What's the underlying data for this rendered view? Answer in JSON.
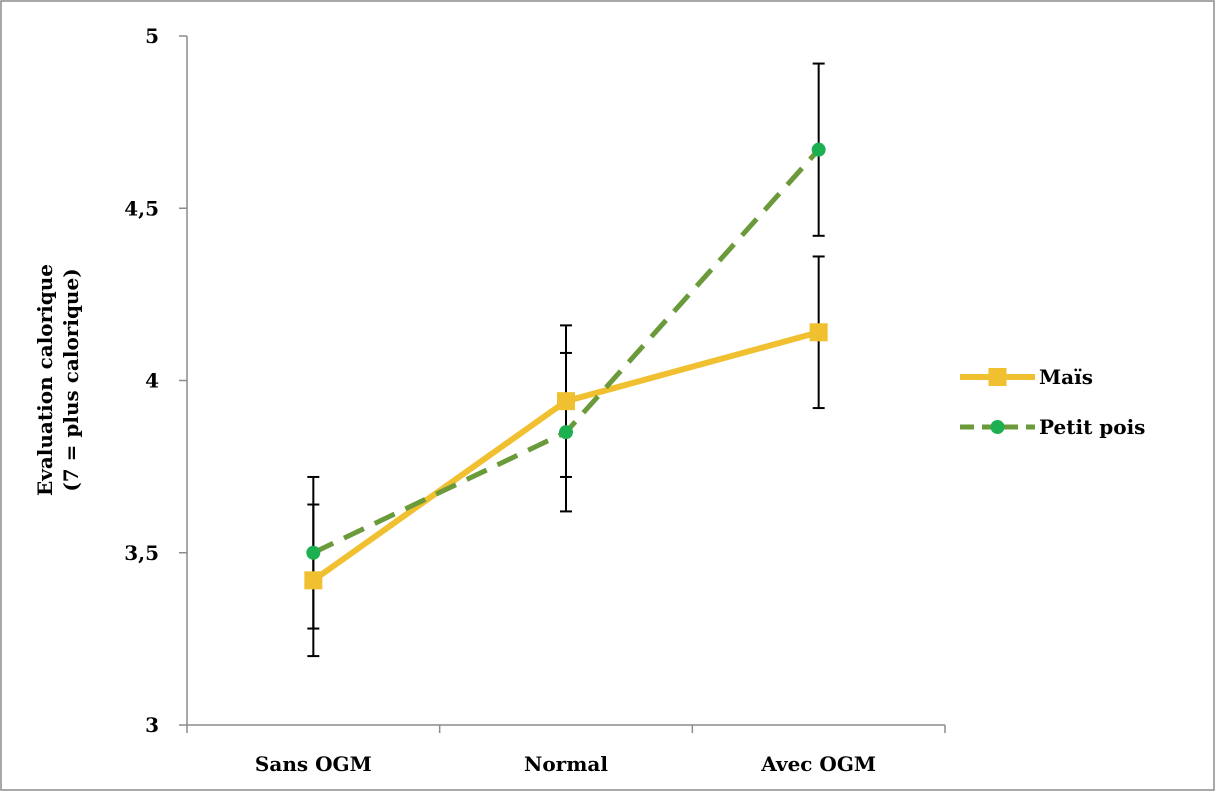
{
  "chart_data": {
    "type": "line",
    "title": "",
    "xlabel": "",
    "ylabel_lines": [
      "Evaluation calorique",
      "(7 = plus calorique)"
    ],
    "categories": [
      "Sans OGM",
      "Normal",
      "Avec OGM"
    ],
    "ylim": [
      3,
      5
    ],
    "yticks": [
      3,
      3.5,
      4,
      4.5,
      5
    ],
    "ytick_labels": [
      "3",
      "3,5",
      "4",
      "4,5",
      "5"
    ],
    "grid": false,
    "legend_position": "right",
    "series": [
      {
        "name": "Maïs",
        "values": [
          3.42,
          3.94,
          4.14
        ],
        "error_low": [
          3.2,
          3.72,
          3.92
        ],
        "error_high": [
          3.64,
          4.16,
          4.36
        ],
        "color": "#F0C030",
        "marker": "square",
        "line_style": "solid"
      },
      {
        "name": "Petit pois",
        "values": [
          3.5,
          3.85,
          4.67
        ],
        "error_low": [
          3.28,
          3.62,
          4.42
        ],
        "error_high": [
          3.72,
          4.08,
          4.92
        ],
        "color": "#6A9A3A",
        "marker_color": "#1DB050",
        "marker": "circle",
        "line_style": "dashed"
      }
    ]
  }
}
